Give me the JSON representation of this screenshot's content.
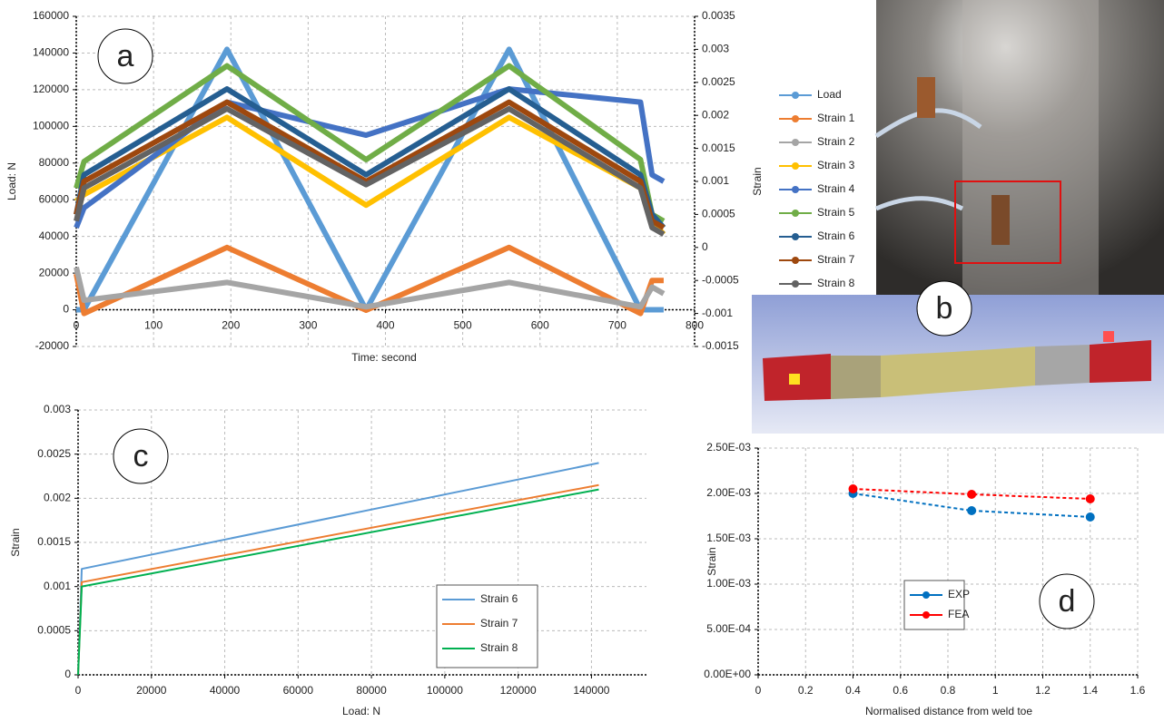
{
  "chart_data": [
    {
      "type": "line",
      "panel_label": "a",
      "xlabel": "Time: second",
      "ylabel": "Load: N",
      "y2label": "Strain",
      "x": [
        0,
        10,
        195,
        375,
        560,
        730,
        745,
        760
      ],
      "xlim": [
        0,
        800
      ],
      "xticks": [
        0,
        100,
        200,
        300,
        400,
        500,
        600,
        700,
        800
      ],
      "ylim": [
        -20000,
        160000
      ],
      "yticks": [
        -20000,
        0,
        20000,
        40000,
        60000,
        80000,
        100000,
        120000,
        140000,
        160000
      ],
      "y2lim": [
        -0.0015,
        0.0035
      ],
      "y2ticks": [
        -0.0015,
        -0.001,
        -0.0005,
        0,
        0.0005,
        0.001,
        0.0015,
        0.002,
        0.0025,
        0.003,
        0.0035
      ],
      "grid": true,
      "legend": "right",
      "markers": false,
      "linestyle": "solid",
      "series": [
        {
          "name": "Load",
          "color": "#5b9bd5",
          "values": [
            0,
            0,
            142000,
            0,
            142000,
            0,
            0,
            0
          ]
        },
        {
          "name": "Strain 1",
          "color": "#ed7d31",
          "axis": "y2",
          "values": [
            -0.0004,
            -0.001,
            0,
            -0.00095,
            0,
            -0.001,
            -0.0005,
            -0.0005
          ]
        },
        {
          "name": "Strain 2",
          "color": "#a5a5a5",
          "axis": "y2",
          "values": [
            -0.0003,
            -0.0008,
            -0.00053,
            -0.0009,
            -0.00053,
            -0.0009,
            -0.0006,
            -0.0007
          ]
        },
        {
          "name": "Strain 3",
          "color": "#ffc000",
          "axis": "y2",
          "values": [
            0.0007,
            0.0008,
            0.00197,
            0.00064,
            0.00197,
            0.0009,
            0.0004,
            0.0002
          ]
        },
        {
          "name": "Strain 4",
          "color": "#4472c4",
          "axis": "y2",
          "values": [
            0.0003,
            0.0006,
            0.0022,
            0.0017,
            0.0024,
            0.0022,
            0.0011,
            0.001
          ]
        },
        {
          "name": "Strain 5",
          "color": "#70ad47",
          "axis": "y2",
          "values": [
            0.0009,
            0.0013,
            0.00275,
            0.00133,
            0.00275,
            0.00133,
            0.0005,
            0.0004
          ]
        },
        {
          "name": "Strain 6",
          "color": "#255e91",
          "axis": "y2",
          "values": [
            0.0005,
            0.0011,
            0.0024,
            0.0011,
            0.0024,
            0.0011,
            0.0005,
            0.0003
          ]
        },
        {
          "name": "Strain 7",
          "color": "#9e480e",
          "axis": "y2",
          "values": [
            0.0005,
            0.001,
            0.0022,
            0.001,
            0.0022,
            0.001,
            0.0004,
            0.0003
          ]
        },
        {
          "name": "Strain 8",
          "color": "#636363",
          "axis": "y2",
          "values": [
            0.0004,
            0.0009,
            0.0021,
            0.00095,
            0.0021,
            0.0009,
            0.0003,
            0.0002
          ]
        }
      ]
    },
    {
      "type": "line",
      "panel_label": "c",
      "xlabel": "Load: N",
      "ylabel": "Strain",
      "x": [
        0,
        1000,
        142000
      ],
      "xlim": [
        0,
        155000
      ],
      "xticks": [
        0,
        20000,
        40000,
        60000,
        80000,
        100000,
        120000,
        140000
      ],
      "ylim": [
        0,
        0.003
      ],
      "yticks": [
        0,
        0.0005,
        0.001,
        0.0015,
        0.002,
        0.0025,
        0.003
      ],
      "grid": true,
      "legend": "lower right",
      "markers": false,
      "linestyle": "solid",
      "series": [
        {
          "name": "Strain 6",
          "color": "#5b9bd5",
          "values": [
            0,
            0.0012,
            0.0024
          ]
        },
        {
          "name": "Strain 7",
          "color": "#ed7d31",
          "values": [
            0,
            0.00105,
            0.00215
          ]
        },
        {
          "name": "Strain 8",
          "color": "#00b050",
          "values": [
            0,
            0.001,
            0.0021
          ]
        }
      ]
    },
    {
      "type": "line",
      "panel_label": "d",
      "xlabel": "Normalised distance from weld toe",
      "ylabel": "Strain",
      "x": [
        0.4,
        0.9,
        1.4
      ],
      "xlim": [
        0,
        1.6
      ],
      "xticks": [
        0,
        0.2,
        0.4,
        0.6,
        0.8,
        1,
        1.2,
        1.4,
        1.6
      ],
      "ylim": [
        0,
        0.0025
      ],
      "yticks": [
        {
          "value": 0,
          "label": "0.00E+00"
        },
        {
          "value": 0.0005,
          "label": "5.00E-04"
        },
        {
          "value": 0.001,
          "label": "1.00E-03"
        },
        {
          "value": 0.0015,
          "label": "1.50E-03"
        },
        {
          "value": 0.002,
          "label": "2.00E-03"
        },
        {
          "value": 0.0025,
          "label": "2.50E-03"
        }
      ],
      "grid": true,
      "legend": "lower left",
      "markers": true,
      "linestyle": "dashed",
      "series": [
        {
          "name": "EXP",
          "color": "#0070c0",
          "values": [
            0.002,
            0.00181,
            0.00174
          ]
        },
        {
          "name": "FEA",
          "color": "#ff0000",
          "values": [
            0.00205,
            0.00199,
            0.00194
          ]
        }
      ]
    }
  ],
  "photo_label": "b"
}
